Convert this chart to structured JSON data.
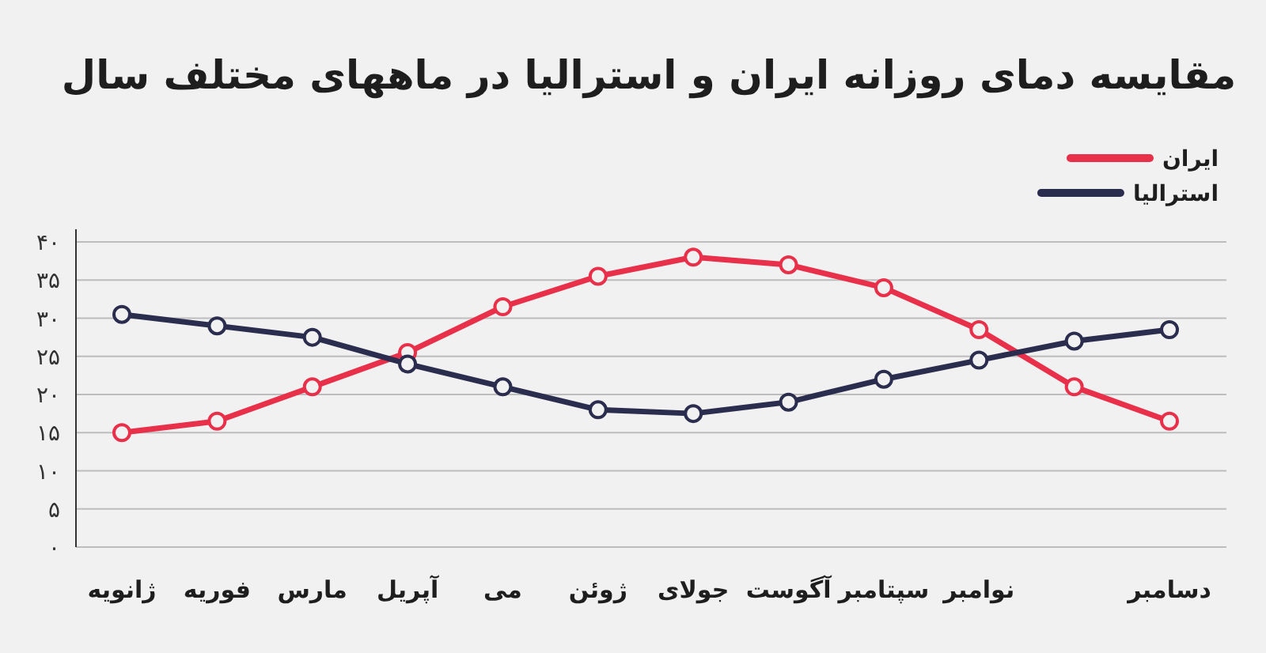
{
  "chart_data": {
    "type": "line",
    "title": "مقایسه دمای روزانه ایران و استرالیا در ماههای مختلف سال",
    "categories": [
      "ژانویه",
      "فوریه",
      "مارس",
      "آپریل",
      "می",
      "ژوئن",
      "جولای",
      "آگوست",
      "سپتامبر",
      "نوامبر",
      null,
      "دسامبر"
    ],
    "series": [
      {
        "name": "ایران",
        "color": "#e8304a",
        "values": [
          15,
          16.5,
          21,
          25.5,
          31.5,
          35.5,
          38,
          37,
          34,
          28.5,
          21,
          16.5
        ]
      },
      {
        "name": "استرالیا",
        "color": "#2b2d4e",
        "values": [
          30.5,
          29,
          27.5,
          24,
          21,
          18,
          17.5,
          19,
          22,
          24.5,
          27,
          28.5
        ]
      }
    ],
    "ylim": [
      0,
      40
    ],
    "yticks": [
      {
        "value": 0,
        "label": "۰"
      },
      {
        "value": 5,
        "label": "۵"
      },
      {
        "value": 10,
        "label": "۱۰"
      },
      {
        "value": 15,
        "label": "۱۵"
      },
      {
        "value": 20,
        "label": "۲۰"
      },
      {
        "value": 25,
        "label": "۲۵"
      },
      {
        "value": 30,
        "label": "۳۰"
      },
      {
        "value": 35,
        "label": "۳۵"
      },
      {
        "value": 40,
        "label": "۴۰"
      }
    ],
    "grid": "y",
    "legend": "top right",
    "marker": "circle",
    "line_style": "solid"
  }
}
